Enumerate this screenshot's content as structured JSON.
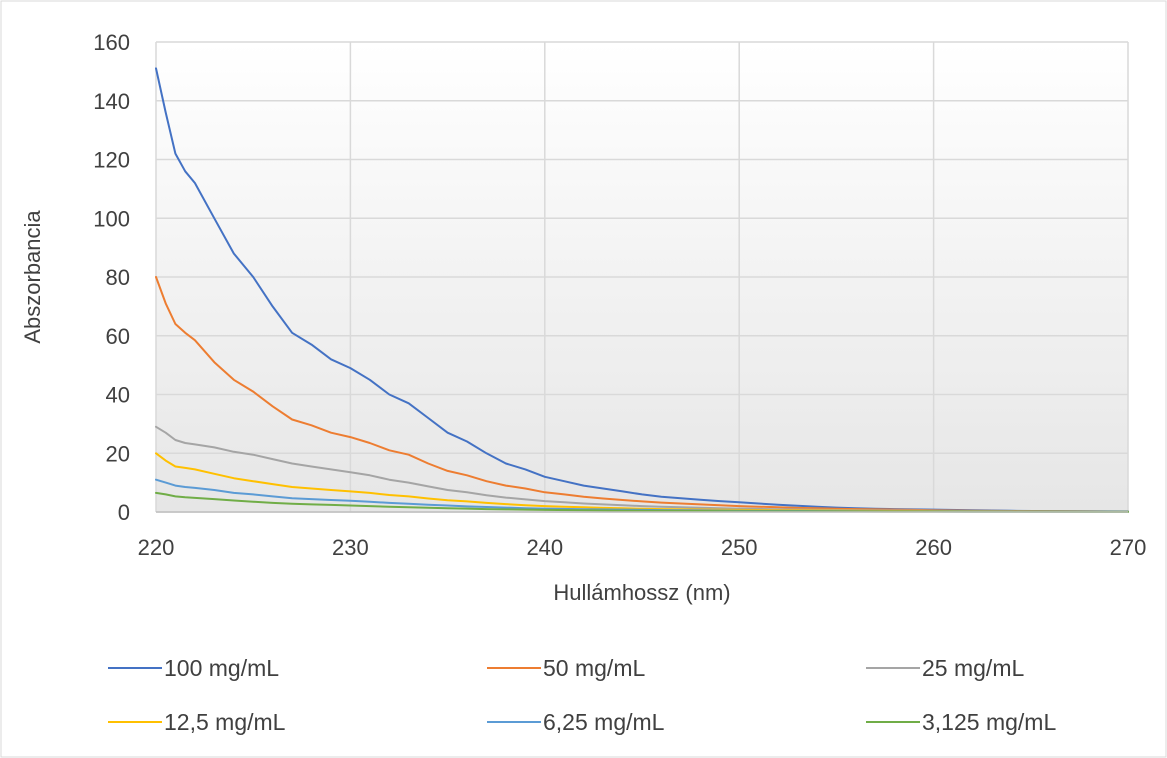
{
  "chart_data": {
    "type": "line",
    "title": "",
    "xlabel": "Hullámhossz (nm)",
    "ylabel": "Abszorbancia",
    "xlim": [
      220,
      270
    ],
    "ylim": [
      0,
      160
    ],
    "x_ticks": [
      220,
      230,
      240,
      250,
      260,
      270
    ],
    "y_ticks": [
      0,
      20,
      40,
      60,
      80,
      100,
      120,
      140,
      160
    ],
    "x_tick_labels": [
      "220",
      "230",
      "240",
      "250",
      "260",
      "270"
    ],
    "y_tick_labels": [
      "0",
      "20",
      "40",
      "60",
      "80",
      "100",
      "120",
      "140",
      "160"
    ],
    "grid": true,
    "legend_position": "bottom",
    "series": [
      {
        "name": "100 mg/mL",
        "color": "#4472C4",
        "points": [
          [
            220,
            151
          ],
          [
            220.5,
            136
          ],
          [
            221,
            122
          ],
          [
            221.5,
            116
          ],
          [
            222,
            112
          ],
          [
            223,
            100
          ],
          [
            224,
            88
          ],
          [
            225,
            80
          ],
          [
            226,
            70
          ],
          [
            227,
            61
          ],
          [
            228,
            57
          ],
          [
            229,
            52
          ],
          [
            230,
            49
          ],
          [
            231,
            45
          ],
          [
            232,
            40
          ],
          [
            233,
            37
          ],
          [
            234,
            32
          ],
          [
            235,
            27
          ],
          [
            236,
            24
          ],
          [
            237,
            20
          ],
          [
            238,
            16.5
          ],
          [
            239,
            14.5
          ],
          [
            240,
            12
          ],
          [
            241,
            10.5
          ],
          [
            242,
            9
          ],
          [
            243,
            8
          ],
          [
            244,
            7
          ],
          [
            245,
            6
          ],
          [
            246,
            5.2
          ],
          [
            247,
            4.7
          ],
          [
            248,
            4.2
          ],
          [
            249,
            3.7
          ],
          [
            250,
            3.3
          ],
          [
            251,
            2.9
          ],
          [
            252,
            2.5
          ],
          [
            253,
            2.1
          ],
          [
            254,
            1.8
          ],
          [
            255,
            1.5
          ],
          [
            256,
            1.3
          ],
          [
            257,
            1.1
          ],
          [
            258,
            1
          ],
          [
            259,
            0.9
          ],
          [
            260,
            0.8
          ],
          [
            262,
            0.6
          ],
          [
            264,
            0.4
          ],
          [
            266,
            0.3
          ],
          [
            268,
            0.25
          ],
          [
            270,
            0.2
          ]
        ]
      },
      {
        "name": "50 mg/mL",
        "color": "#ED7D31",
        "points": [
          [
            220,
            80
          ],
          [
            220.5,
            71
          ],
          [
            221,
            64
          ],
          [
            221.5,
            61
          ],
          [
            222,
            58.5
          ],
          [
            223,
            51
          ],
          [
            224,
            45
          ],
          [
            225,
            41
          ],
          [
            226,
            36
          ],
          [
            227,
            31.5
          ],
          [
            228,
            29.5
          ],
          [
            229,
            27
          ],
          [
            230,
            25.5
          ],
          [
            231,
            23.5
          ],
          [
            232,
            21
          ],
          [
            233,
            19.5
          ],
          [
            234,
            16.5
          ],
          [
            235,
            14
          ],
          [
            236,
            12.5
          ],
          [
            237,
            10.5
          ],
          [
            238,
            9
          ],
          [
            239,
            8
          ],
          [
            240,
            6.7
          ],
          [
            241,
            6
          ],
          [
            242,
            5.2
          ],
          [
            243,
            4.6
          ],
          [
            244,
            4.1
          ],
          [
            245,
            3.6
          ],
          [
            246,
            3.2
          ],
          [
            247,
            2.9
          ],
          [
            248,
            2.6
          ],
          [
            249,
            2.3
          ],
          [
            250,
            2
          ],
          [
            251,
            1.8
          ],
          [
            252,
            1.6
          ],
          [
            253,
            1.4
          ],
          [
            254,
            1.25
          ],
          [
            255,
            1.1
          ],
          [
            256,
            1
          ],
          [
            257,
            0.9
          ],
          [
            258,
            0.8
          ],
          [
            259,
            0.7
          ],
          [
            260,
            0.6
          ],
          [
            262,
            0.45
          ],
          [
            264,
            0.35
          ],
          [
            266,
            0.25
          ],
          [
            268,
            0.2
          ],
          [
            270,
            0.15
          ]
        ]
      },
      {
        "name": "25 mg/mL",
        "color": "#A5A5A5",
        "points": [
          [
            220,
            29
          ],
          [
            220.5,
            27
          ],
          [
            221,
            24.5
          ],
          [
            221.5,
            23.5
          ],
          [
            222,
            23
          ],
          [
            223,
            22
          ],
          [
            224,
            20.5
          ],
          [
            225,
            19.5
          ],
          [
            226,
            18
          ],
          [
            227,
            16.5
          ],
          [
            228,
            15.5
          ],
          [
            229,
            14.5
          ],
          [
            230,
            13.5
          ],
          [
            231,
            12.5
          ],
          [
            232,
            11
          ],
          [
            233,
            10
          ],
          [
            234,
            8.7
          ],
          [
            235,
            7.5
          ],
          [
            236,
            6.7
          ],
          [
            237,
            5.7
          ],
          [
            238,
            4.9
          ],
          [
            239,
            4.3
          ],
          [
            240,
            3.7
          ],
          [
            241,
            3.3
          ],
          [
            242,
            2.9
          ],
          [
            243,
            2.6
          ],
          [
            244,
            2.3
          ],
          [
            245,
            2
          ],
          [
            246,
            1.8
          ],
          [
            247,
            1.6
          ],
          [
            248,
            1.45
          ],
          [
            249,
            1.3
          ],
          [
            250,
            1.15
          ],
          [
            252,
            0.95
          ],
          [
            254,
            0.75
          ],
          [
            256,
            0.6
          ],
          [
            258,
            0.5
          ],
          [
            260,
            0.4
          ],
          [
            262,
            0.32
          ],
          [
            264,
            0.25
          ],
          [
            266,
            0.2
          ],
          [
            268,
            0.15
          ],
          [
            270,
            0.12
          ]
        ]
      },
      {
        "name": "12,5 mg/mL",
        "color": "#FFC000",
        "points": [
          [
            220,
            20
          ],
          [
            220.5,
            17.5
          ],
          [
            221,
            15.5
          ],
          [
            221.5,
            15
          ],
          [
            222,
            14.5
          ],
          [
            223,
            13
          ],
          [
            224,
            11.5
          ],
          [
            225,
            10.5
          ],
          [
            226,
            9.5
          ],
          [
            227,
            8.5
          ],
          [
            228,
            8
          ],
          [
            229,
            7.5
          ],
          [
            230,
            7
          ],
          [
            231,
            6.5
          ],
          [
            232,
            5.8
          ],
          [
            233,
            5.3
          ],
          [
            234,
            4.6
          ],
          [
            235,
            4
          ],
          [
            236,
            3.6
          ],
          [
            237,
            3.1
          ],
          [
            238,
            2.7
          ],
          [
            239,
            2.3
          ],
          [
            240,
            2
          ],
          [
            241,
            1.8
          ],
          [
            242,
            1.6
          ],
          [
            243,
            1.4
          ],
          [
            244,
            1.25
          ],
          [
            245,
            1.1
          ],
          [
            246,
            1
          ],
          [
            248,
            0.85
          ],
          [
            250,
            0.7
          ],
          [
            252,
            0.6
          ],
          [
            254,
            0.5
          ],
          [
            256,
            0.4
          ],
          [
            258,
            0.33
          ],
          [
            260,
            0.27
          ],
          [
            262,
            0.22
          ],
          [
            264,
            0.18
          ],
          [
            266,
            0.14
          ],
          [
            268,
            0.11
          ],
          [
            270,
            0.09
          ]
        ]
      },
      {
        "name": "6,25 mg/mL",
        "color": "#5B9BD5",
        "points": [
          [
            220,
            11
          ],
          [
            220.5,
            10
          ],
          [
            221,
            9
          ],
          [
            221.5,
            8.5
          ],
          [
            222,
            8.2
          ],
          [
            223,
            7.5
          ],
          [
            224,
            6.5
          ],
          [
            225,
            6
          ],
          [
            226,
            5.3
          ],
          [
            227,
            4.7
          ],
          [
            228,
            4.4
          ],
          [
            229,
            4.1
          ],
          [
            230,
            3.8
          ],
          [
            231,
            3.5
          ],
          [
            232,
            3.1
          ],
          [
            233,
            2.8
          ],
          [
            234,
            2.5
          ],
          [
            235,
            2.2
          ],
          [
            236,
            1.9
          ],
          [
            237,
            1.7
          ],
          [
            238,
            1.5
          ],
          [
            239,
            1.3
          ],
          [
            240,
            1.15
          ],
          [
            242,
            0.95
          ],
          [
            244,
            0.8
          ],
          [
            246,
            0.65
          ],
          [
            248,
            0.55
          ],
          [
            250,
            0.45
          ],
          [
            252,
            0.38
          ],
          [
            254,
            0.32
          ],
          [
            256,
            0.27
          ],
          [
            258,
            0.22
          ],
          [
            260,
            0.18
          ],
          [
            262,
            0.15
          ],
          [
            264,
            0.12
          ],
          [
            266,
            0.1
          ],
          [
            268,
            0.08
          ],
          [
            270,
            0.06
          ]
        ]
      },
      {
        "name": "3,125 mg/mL",
        "color": "#70AD47",
        "points": [
          [
            220,
            6.5
          ],
          [
            220.5,
            6
          ],
          [
            221,
            5.3
          ],
          [
            221.5,
            5
          ],
          [
            222,
            4.8
          ],
          [
            223,
            4.4
          ],
          [
            224,
            3.9
          ],
          [
            225,
            3.5
          ],
          [
            226,
            3.1
          ],
          [
            227,
            2.8
          ],
          [
            228,
            2.6
          ],
          [
            229,
            2.4
          ],
          [
            230,
            2.2
          ],
          [
            231,
            2
          ],
          [
            232,
            1.8
          ],
          [
            233,
            1.6
          ],
          [
            234,
            1.45
          ],
          [
            235,
            1.3
          ],
          [
            236,
            1.15
          ],
          [
            237,
            1
          ],
          [
            238,
            0.9
          ],
          [
            239,
            0.8
          ],
          [
            240,
            0.7
          ],
          [
            242,
            0.58
          ],
          [
            244,
            0.48
          ],
          [
            246,
            0.4
          ],
          [
            248,
            0.34
          ],
          [
            250,
            0.28
          ],
          [
            252,
            0.24
          ],
          [
            254,
            0.2
          ],
          [
            256,
            0.17
          ],
          [
            258,
            0.14
          ],
          [
            260,
            0.12
          ],
          [
            262,
            0.1
          ],
          [
            264,
            0.08
          ],
          [
            266,
            0.07
          ],
          [
            268,
            0.05
          ],
          [
            270,
            0.04
          ]
        ]
      }
    ]
  }
}
